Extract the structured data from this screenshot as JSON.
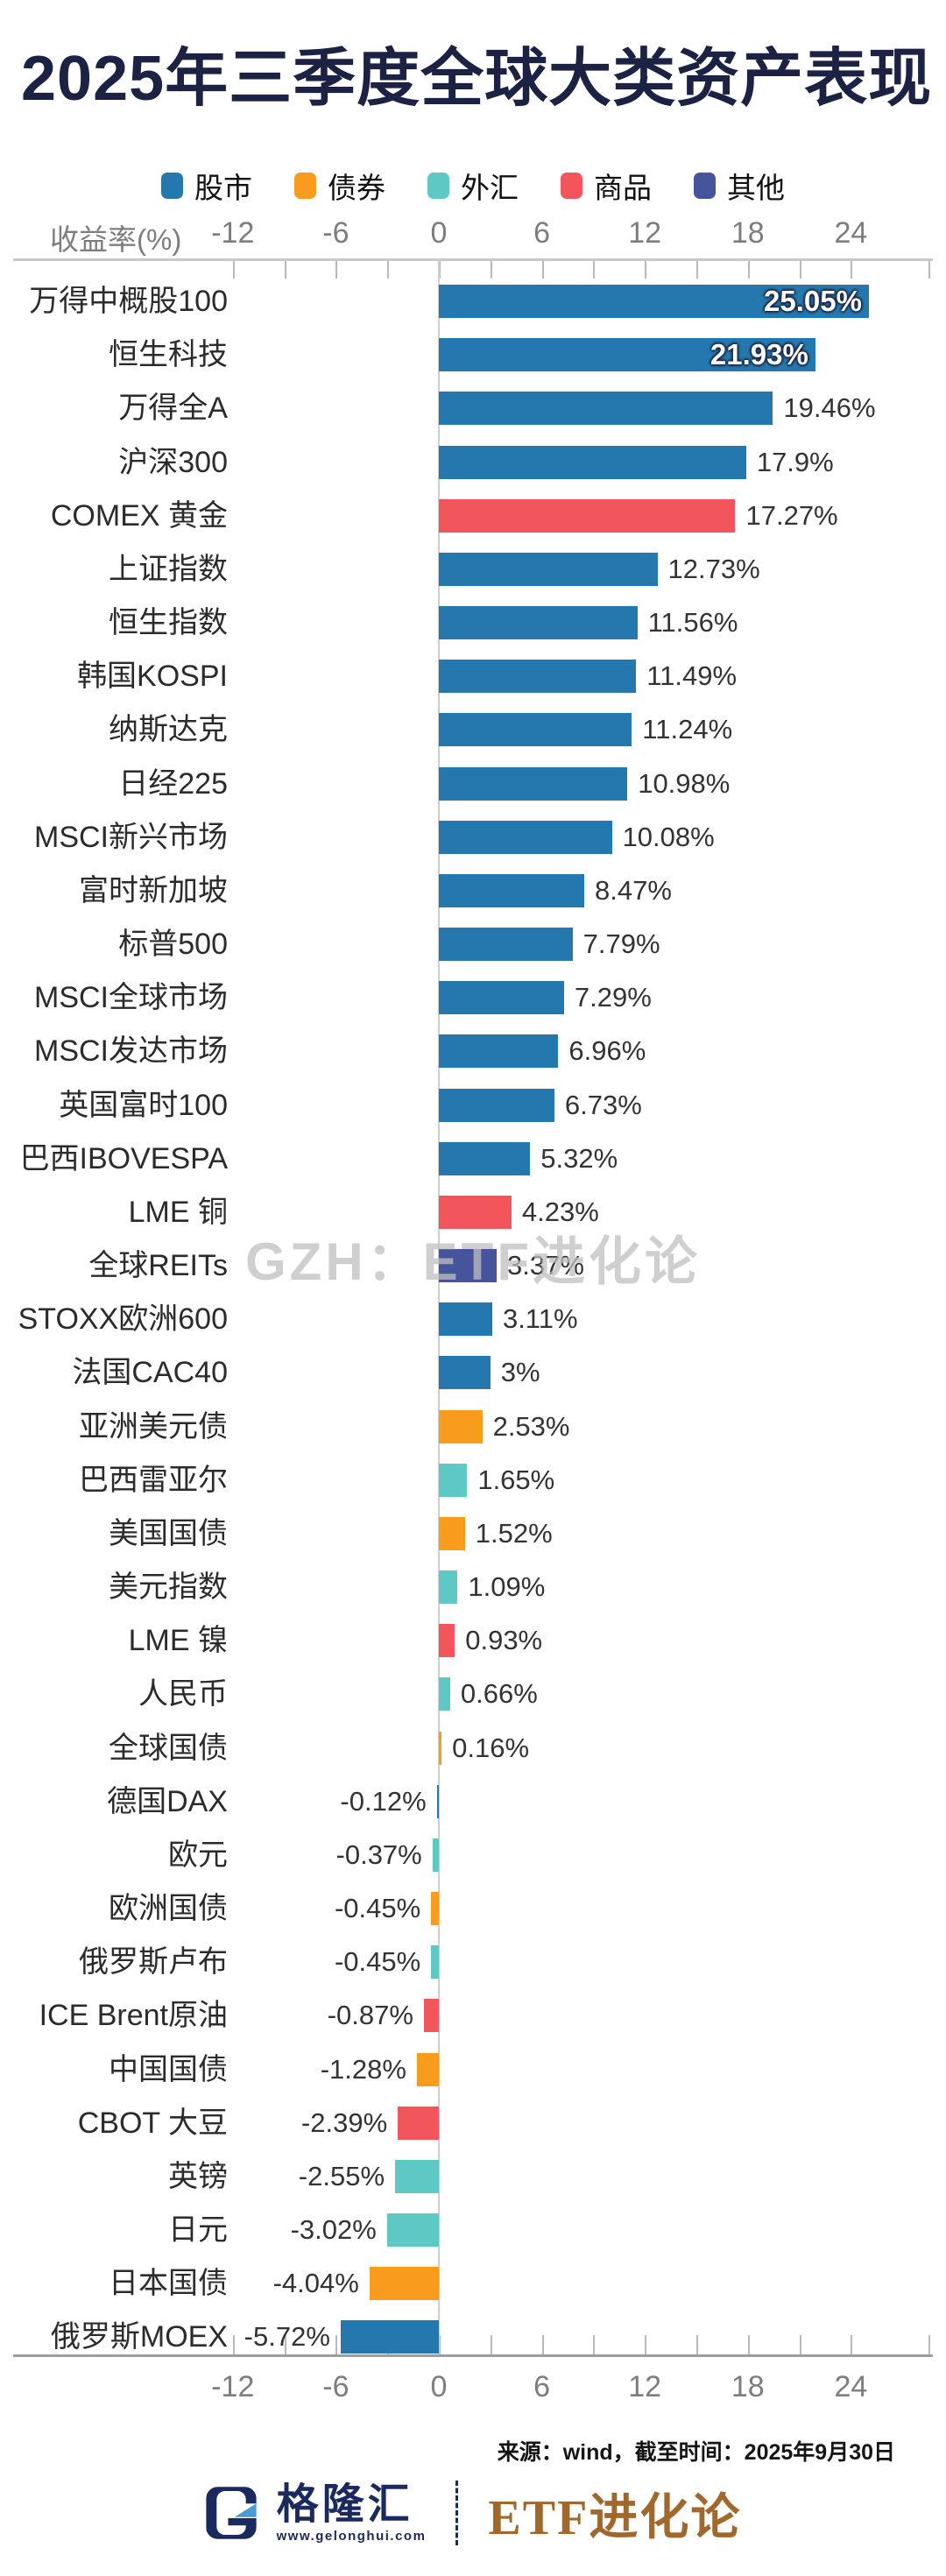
{
  "title": "2025年三季度全球大类资产表现",
  "legend": {
    "items": [
      {
        "id": "stock",
        "label": "股市",
        "color": "#2478ad"
      },
      {
        "id": "bond",
        "label": "债券",
        "color": "#f99b1d"
      },
      {
        "id": "fx",
        "label": "外汇",
        "color": "#5ec8c5"
      },
      {
        "id": "commodity",
        "label": "商品",
        "color": "#f2565c"
      },
      {
        "id": "other",
        "label": "其他",
        "color": "#46549b"
      }
    ]
  },
  "axis": {
    "unit_label": "收益率(%)",
    "major_ticks": [
      {
        "value": -12,
        "label": "-12"
      },
      {
        "value": -6,
        "label": "-6"
      },
      {
        "value": 0,
        "label": "0"
      },
      {
        "value": 6,
        "label": "6"
      },
      {
        "value": 12,
        "label": "12"
      },
      {
        "value": 18,
        "label": "18"
      },
      {
        "value": 24,
        "label": "24"
      }
    ],
    "minor_step": 3
  },
  "chart_data": {
    "type": "bar",
    "orientation": "horizontal",
    "title": "2025年三季度全球大类资产表现",
    "xlabel": "收益率(%)",
    "ylabel": "",
    "xlim": [
      -12,
      24
    ],
    "grid": false,
    "legend_position": "top",
    "value_unit": "%",
    "rows": [
      {
        "label": "万得中概股100",
        "value": 25.05,
        "display": "25.05%",
        "category": "stock",
        "label_position": "inside"
      },
      {
        "label": "恒生科技",
        "value": 21.93,
        "display": "21.93%",
        "category": "stock",
        "label_position": "inside"
      },
      {
        "label": "万得全A",
        "value": 19.46,
        "display": "19.46%",
        "category": "stock"
      },
      {
        "label": "沪深300",
        "value": 17.9,
        "display": "17.9%",
        "category": "stock"
      },
      {
        "label": "COMEX 黄金",
        "value": 17.27,
        "display": "17.27%",
        "category": "commodity"
      },
      {
        "label": "上证指数",
        "value": 12.73,
        "display": "12.73%",
        "category": "stock"
      },
      {
        "label": "恒生指数",
        "value": 11.56,
        "display": "11.56%",
        "category": "stock"
      },
      {
        "label": "韩国KOSPI",
        "value": 11.49,
        "display": "11.49%",
        "category": "stock"
      },
      {
        "label": "纳斯达克",
        "value": 11.24,
        "display": "11.24%",
        "category": "stock"
      },
      {
        "label": "日经225",
        "value": 10.98,
        "display": "10.98%",
        "category": "stock"
      },
      {
        "label": "MSCI新兴市场",
        "value": 10.08,
        "display": "10.08%",
        "category": "stock"
      },
      {
        "label": "富时新加坡",
        "value": 8.47,
        "display": "8.47%",
        "category": "stock"
      },
      {
        "label": "标普500",
        "value": 7.79,
        "display": "7.79%",
        "category": "stock"
      },
      {
        "label": "MSCI全球市场",
        "value": 7.29,
        "display": "7.29%",
        "category": "stock"
      },
      {
        "label": "MSCI发达市场",
        "value": 6.96,
        "display": "6.96%",
        "category": "stock"
      },
      {
        "label": "英国富时100",
        "value": 6.73,
        "display": "6.73%",
        "category": "stock"
      },
      {
        "label": "巴西IBOVESPA",
        "value": 5.32,
        "display": "5.32%",
        "category": "stock"
      },
      {
        "label": "LME 铜",
        "value": 4.23,
        "display": "4.23%",
        "category": "commodity"
      },
      {
        "label": "全球REITs",
        "value": 3.37,
        "display": "3.37%",
        "category": "other"
      },
      {
        "label": "STOXX欧洲600",
        "value": 3.11,
        "display": "3.11%",
        "category": "stock"
      },
      {
        "label": "法国CAC40",
        "value": 3,
        "display": "3%",
        "category": "stock"
      },
      {
        "label": "亚洲美元债",
        "value": 2.53,
        "display": "2.53%",
        "category": "bond"
      },
      {
        "label": "巴西雷亚尔",
        "value": 1.65,
        "display": "1.65%",
        "category": "fx"
      },
      {
        "label": "美国国债",
        "value": 1.52,
        "display": "1.52%",
        "category": "bond"
      },
      {
        "label": "美元指数",
        "value": 1.09,
        "display": "1.09%",
        "category": "fx"
      },
      {
        "label": "LME 镍",
        "value": 0.93,
        "display": "0.93%",
        "category": "commodity"
      },
      {
        "label": "人民币",
        "value": 0.66,
        "display": "0.66%",
        "category": "fx"
      },
      {
        "label": "全球国债",
        "value": 0.16,
        "display": "0.16%",
        "category": "bond"
      },
      {
        "label": "德国DAX",
        "value": -0.12,
        "display": "-0.12%",
        "category": "stock"
      },
      {
        "label": "欧元",
        "value": -0.37,
        "display": "-0.37%",
        "category": "fx"
      },
      {
        "label": "欧洲国债",
        "value": -0.45,
        "display": "-0.45%",
        "category": "bond"
      },
      {
        "label": "俄罗斯卢布",
        "value": -0.45,
        "display": "-0.45%",
        "category": "fx"
      },
      {
        "label": "ICE Brent原油",
        "value": -0.87,
        "display": "-0.87%",
        "category": "commodity"
      },
      {
        "label": "中国国债",
        "value": -1.28,
        "display": "-1.28%",
        "category": "bond"
      },
      {
        "label": "CBOT 大豆",
        "value": -2.39,
        "display": "-2.39%",
        "category": "commodity"
      },
      {
        "label": "英镑",
        "value": -2.55,
        "display": "-2.55%",
        "category": "fx"
      },
      {
        "label": "日元",
        "value": -3.02,
        "display": "-3.02%",
        "category": "fx"
      },
      {
        "label": "日本国债",
        "value": -4.04,
        "display": "-4.04%",
        "category": "bond"
      },
      {
        "label": "俄罗斯MOEX",
        "value": -5.72,
        "display": "-5.72%",
        "category": "stock"
      }
    ]
  },
  "watermark": {
    "text": "GZH：ETF进化论"
  },
  "source_note": "来源：wind，截至时间：2025年9月30日",
  "footer": {
    "brand": "格隆汇",
    "url": "www.gelonghui.com",
    "partner": "ETF进化论",
    "brand_color": "#1b2a5e",
    "partner_color": "#a2672b"
  }
}
